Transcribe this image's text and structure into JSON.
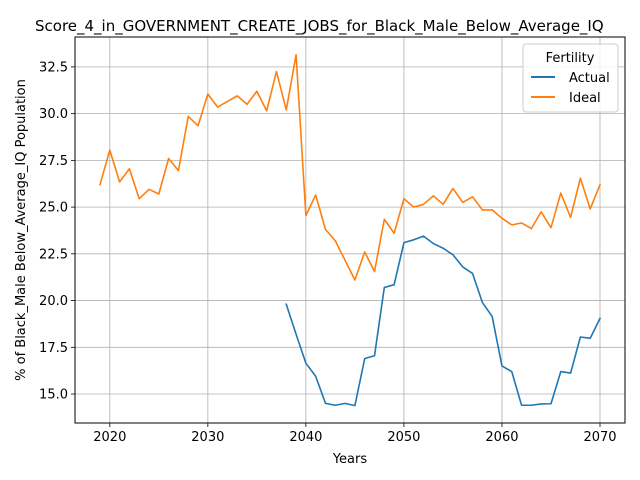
{
  "chart_data": {
    "type": "line",
    "title": "Score_4_in_GOVERNMENT_CREATE_JOBS_for_Black_Male_Below_Average_IQ",
    "xlabel": "Years",
    "ylabel": "% of Black_Male Below_Average_IQ Population",
    "xlim": [
      2016.45,
      2072.55
    ],
    "ylim": [
      13.45,
      34.1
    ],
    "xticks": [
      2020,
      2030,
      2040,
      2050,
      2060,
      2070
    ],
    "yticks": [
      15.0,
      17.5,
      20.0,
      22.5,
      25.0,
      27.5,
      30.0,
      32.5
    ],
    "ytick_labels": [
      "15.0",
      "17.5",
      "20.0",
      "22.5",
      "25.0",
      "27.5",
      "30.0",
      "32.5"
    ],
    "grid": true,
    "legend": {
      "title": "Fertility",
      "placement": "top-right"
    },
    "series": [
      {
        "name": "Actual",
        "color": "#1f77b4",
        "x": [
          2038,
          2039,
          2040,
          2041,
          2042,
          2043,
          2044,
          2045,
          2046,
          2047,
          2048,
          2049,
          2050,
          2051,
          2052,
          2053,
          2054,
          2055,
          2056,
          2057,
          2058,
          2059,
          2060,
          2061,
          2062,
          2063,
          2064,
          2065,
          2066,
          2067,
          2068,
          2069,
          2070
        ],
        "y": [
          19.8,
          18.2,
          16.65,
          15.95,
          14.5,
          14.4,
          14.5,
          14.38,
          16.9,
          17.05,
          20.7,
          20.85,
          23.1,
          23.25,
          23.45,
          23.05,
          22.8,
          22.45,
          21.8,
          21.45,
          19.9,
          19.15,
          16.5,
          16.2,
          14.4,
          14.4,
          14.47,
          14.48,
          16.2,
          16.12,
          18.05,
          17.98,
          19.05
        ]
      },
      {
        "name": "Ideal",
        "color": "#ff7f0e",
        "x": [
          2019,
          2020,
          2021,
          2022,
          2023,
          2024,
          2025,
          2026,
          2027,
          2028,
          2029,
          2030,
          2031,
          2032,
          2033,
          2034,
          2035,
          2036,
          2037,
          2038,
          2039,
          2040,
          2041,
          2042,
          2043,
          2044,
          2045,
          2046,
          2047,
          2048,
          2049,
          2050,
          2051,
          2052,
          2053,
          2054,
          2055,
          2056,
          2057,
          2058,
          2059,
          2060,
          2061,
          2062,
          2063,
          2064,
          2065,
          2066,
          2067,
          2068,
          2069,
          2070
        ],
        "y": [
          26.2,
          28.05,
          26.35,
          27.05,
          25.45,
          25.95,
          25.7,
          27.6,
          26.95,
          29.85,
          29.35,
          31.05,
          30.35,
          30.65,
          30.95,
          30.5,
          31.2,
          30.15,
          32.25,
          30.2,
          33.15,
          24.55,
          25.65,
          23.8,
          23.2,
          22.15,
          21.1,
          22.6,
          21.55,
          24.35,
          23.6,
          25.45,
          25.0,
          25.15,
          25.6,
          25.15,
          26.0,
          25.25,
          25.55,
          24.85,
          24.85,
          24.4,
          24.05,
          24.15,
          23.85,
          24.75,
          23.9,
          25.75,
          24.45,
          26.55,
          24.9,
          26.2
        ]
      }
    ]
  }
}
